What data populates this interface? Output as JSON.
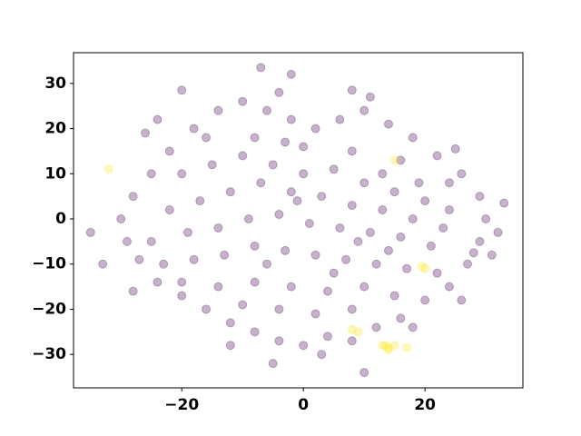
{
  "chart_data": {
    "type": "scatter",
    "xlim": [
      -37.8,
      36.1
    ],
    "ylim": [
      -37.4,
      36.8
    ],
    "xticks": [
      {
        "value": -20,
        "label": "−20"
      },
      0,
      20
    ],
    "yticks": [
      {
        "value": -30,
        "label": "−30"
      },
      {
        "value": -20,
        "label": "−20"
      },
      {
        "value": -10,
        "label": "−10"
      },
      0,
      10,
      20,
      30
    ],
    "alpha": 0.3,
    "series": [
      {
        "color": "#440154",
        "x": [
          -7,
          -33,
          10,
          -5,
          32,
          33,
          -35,
          -26,
          -20,
          8,
          -4,
          25,
          28,
          -30,
          -28,
          -25,
          -22,
          -18,
          -14,
          -10,
          -6,
          -2,
          2,
          6,
          10,
          14,
          18,
          22,
          26,
          29,
          30,
          29,
          27,
          24,
          20,
          16,
          12,
          8,
          4,
          0,
          -4,
          -8,
          -12,
          -16,
          -20,
          -24,
          -27,
          -29,
          -20,
          -15,
          -10,
          -5,
          0,
          5,
          10,
          15,
          20,
          24,
          -22,
          -17,
          -12,
          -7,
          -2,
          3,
          8,
          13,
          18,
          23,
          -25,
          -19,
          -14,
          -9,
          -4,
          1,
          6,
          11,
          16,
          21,
          -23,
          -18,
          -13,
          -8,
          -3,
          2,
          7,
          12,
          17,
          22,
          -20,
          -14,
          -8,
          -2,
          4,
          10,
          15,
          -10,
          -4,
          2,
          8,
          -16,
          -8,
          0,
          8,
          16,
          -12,
          3,
          18,
          -24,
          11,
          -2,
          26,
          31,
          -28,
          5,
          14,
          19,
          -6,
          -1,
          9,
          13,
          24,
          -3
        ],
        "y": [
          33.5,
          -10,
          -34,
          -32,
          -3,
          3.5,
          -3,
          19,
          28.5,
          28.5,
          28,
          15.5,
          -7.5,
          0,
          5,
          10,
          15,
          20,
          24,
          26,
          24,
          22,
          20,
          22,
          24,
          21,
          18,
          14,
          10,
          5,
          0,
          -5,
          -10,
          -15,
          -18,
          -22,
          -24,
          -27,
          -26,
          -28,
          -27,
          -25,
          -23,
          -20,
          -17,
          -14,
          -9,
          -5,
          10,
          12,
          14,
          12,
          10,
          11,
          8,
          6,
          4,
          2,
          2,
          4,
          6,
          8,
          6,
          5,
          3,
          2,
          0,
          -2,
          -5,
          -3,
          -2,
          0,
          1,
          -1,
          -2,
          -3,
          -4,
          -6,
          -10,
          -9,
          -8,
          -6,
          -7,
          -8,
          -9,
          -10,
          -11,
          -12,
          -14,
          -15,
          -14,
          -15,
          -16,
          -15,
          -17,
          -19,
          -20,
          -21,
          -20,
          18,
          18,
          16,
          15,
          13,
          -28,
          -30,
          -24,
          22,
          27,
          32,
          -18,
          -8,
          -16,
          -12,
          -7,
          8,
          -10,
          4,
          -5,
          10,
          8,
          17
        ]
      },
      {
        "color": "#fde725",
        "x": [
          -32,
          15,
          19.5,
          20,
          8,
          9,
          13,
          14,
          15,
          14,
          17,
          13.5
        ],
        "y": [
          11,
          13,
          -10.5,
          -11,
          -24.5,
          -25,
          -28,
          -28.5,
          -28,
          -29,
          -28.5,
          -28
        ]
      }
    ]
  }
}
